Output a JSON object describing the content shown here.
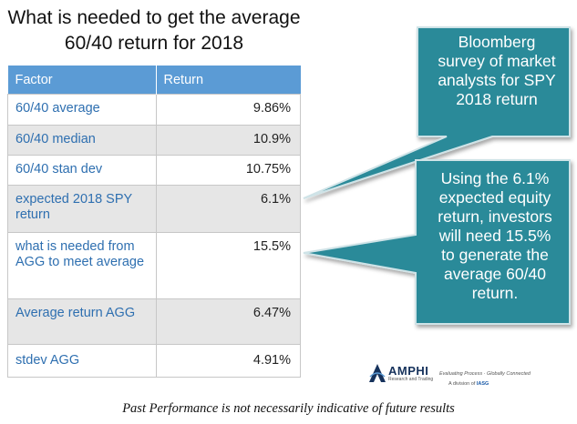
{
  "slide": {
    "title_line1": "What is needed to get the average",
    "title_line2": "60/40 return for 2018"
  },
  "table": {
    "headers": {
      "factor": "Factor",
      "return": "Return"
    },
    "rows": [
      {
        "factor": "60/40 average",
        "return": "9.86%"
      },
      {
        "factor": "60/40 median",
        "return": "10.9%"
      },
      {
        "factor": "60/40 stan dev",
        "return": "10.75%"
      },
      {
        "factor": "expected 2018 SPY return",
        "return": "6.1%"
      },
      {
        "factor": "what is needed from AGG to meet average",
        "return": "15.5%"
      },
      {
        "factor": "Average return AGG",
        "return": "6.47%"
      },
      {
        "factor": "stdev AGG",
        "return": "4.91%"
      }
    ]
  },
  "callouts": {
    "bloomberg": [
      "Bloomberg",
      "survey of market",
      "analysts  for SPY",
      "2018 return"
    ],
    "needed": [
      "Using the 6.1%",
      "expected equity",
      "return, investors",
      "will need 15.5%",
      "to generate the",
      "average 60/40",
      "return."
    ]
  },
  "logo": {
    "name": "AMPHI",
    "sub": "Research and Trading",
    "tagline": "Evaluating Process · Globally Connected",
    "division_prefix": "A division of",
    "division_brand": "IASG"
  },
  "footer": {
    "disclaimer": "Past Performance is not necessarily indicative of future results"
  },
  "colors": {
    "header_blue": "#5b9bd5",
    "factor_text": "#2e6fb0",
    "callout_fill": "#2a8a99",
    "callout_border": "#cfe3e7"
  }
}
